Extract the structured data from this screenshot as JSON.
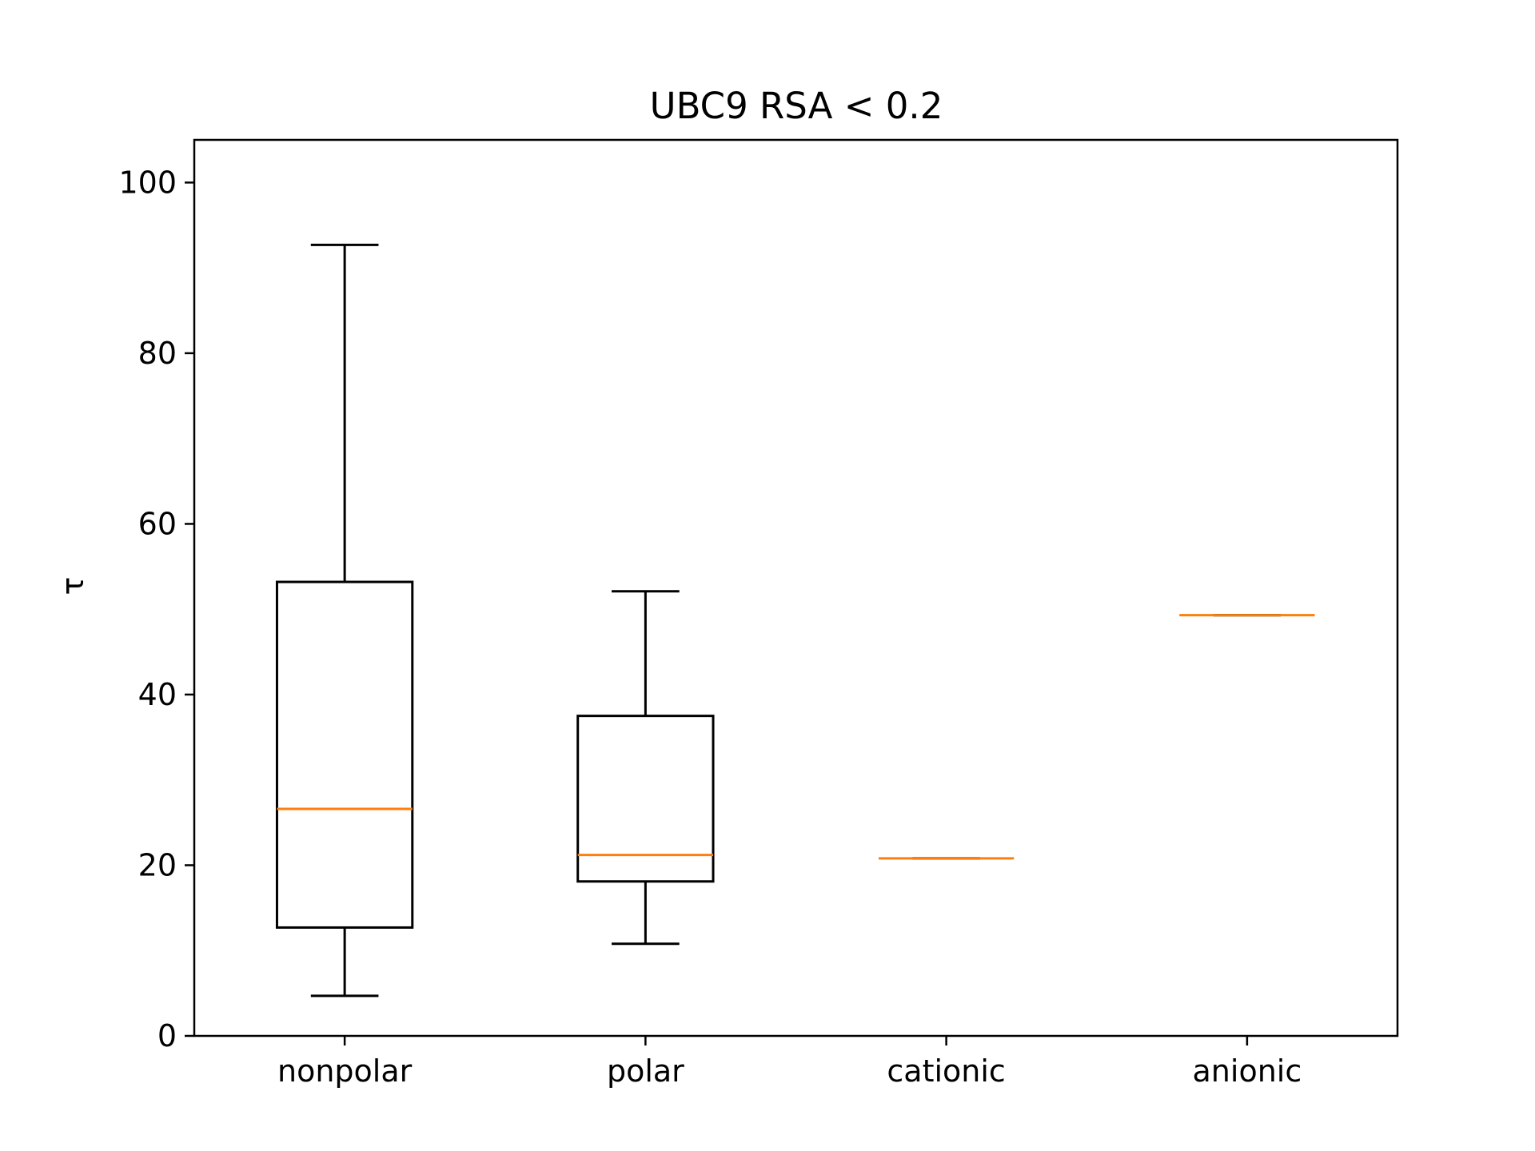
{
  "chart_data": {
    "type": "box",
    "title": "UBC9 RSA  <  0.2",
    "xlabel": "",
    "ylabel": "τ",
    "ylim": [
      0,
      105
    ],
    "yticks": [
      0,
      20,
      40,
      60,
      80,
      100
    ],
    "grid": false,
    "categories": [
      "nonpolar",
      "polar",
      "cationic",
      "anionic"
    ],
    "boxes": [
      {
        "label": "nonpolar",
        "whisker_low": 4.7,
        "q1": 12.7,
        "median": 26.6,
        "q3": 53.2,
        "whisker_high": 92.7
      },
      {
        "label": "polar",
        "whisker_low": 10.8,
        "q1": 18.1,
        "median": 21.2,
        "q3": 37.5,
        "whisker_high": 52.1
      },
      {
        "label": "cationic",
        "whisker_low": 20.8,
        "q1": 20.8,
        "median": 20.8,
        "q3": 20.8,
        "whisker_high": 20.8
      },
      {
        "label": "anionic",
        "whisker_low": 49.3,
        "q1": 49.3,
        "median": 49.3,
        "q3": 49.3,
        "whisker_high": 49.3
      }
    ],
    "colors": {
      "box": "#000000",
      "median": "#ff7f0e"
    }
  }
}
